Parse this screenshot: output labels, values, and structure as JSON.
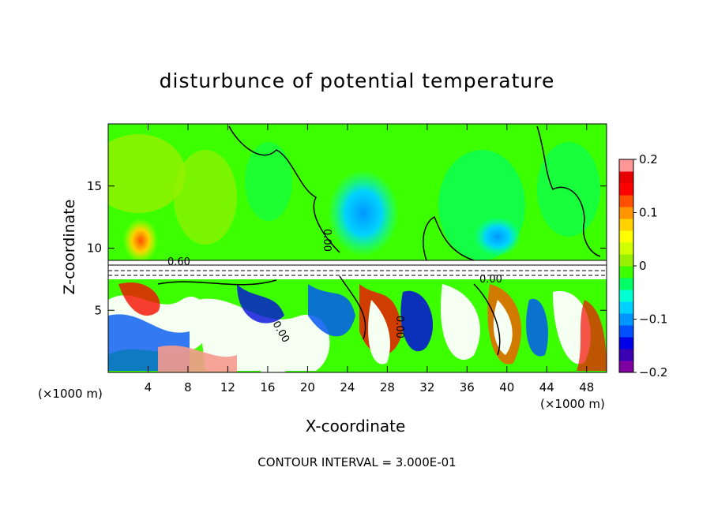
{
  "chart_data": {
    "type": "heatmap",
    "title": "disturbunce of potential temperature",
    "xlabel": "X-coordinate",
    "ylabel": "Z-coordinate",
    "x_unit_label_left": "(×1000 m)",
    "x_unit_label_right": "(×1000 m)",
    "xlim": [
      0,
      50
    ],
    "ylim": [
      0,
      20
    ],
    "x_ticks": [
      4,
      8,
      12,
      16,
      20,
      24,
      28,
      32,
      36,
      40,
      44,
      48
    ],
    "y_ticks": [
      5,
      10,
      15
    ],
    "colorbar": {
      "min": -0.2,
      "max": 0.2,
      "tick_labels": [
        "0.2",
        "0.1",
        "0",
        "−0.1",
        "−0.2"
      ],
      "tick_values": [
        0.2,
        0.1,
        0,
        -0.1,
        -0.2
      ],
      "colors": [
        "#7f00a0",
        "#3c00b4",
        "#0000e6",
        "#0050ff",
        "#0096ff",
        "#00d2ff",
        "#00ffd2",
        "#00ff64",
        "#3cff00",
        "#96f000",
        "#d2ff00",
        "#ffff00",
        "#ffd200",
        "#ff9600",
        "#ff5000",
        "#ff0000",
        "#e60000",
        "#ff9696"
      ]
    },
    "contour_labels": [
      "0.00",
      "0.60",
      "0.00",
      "0.00",
      "0.00"
    ],
    "contour_interval_text": "CONTOUR INTERVAL = 3.000E-01",
    "inversion_layer_z": [
      7.5,
      9
    ]
  }
}
